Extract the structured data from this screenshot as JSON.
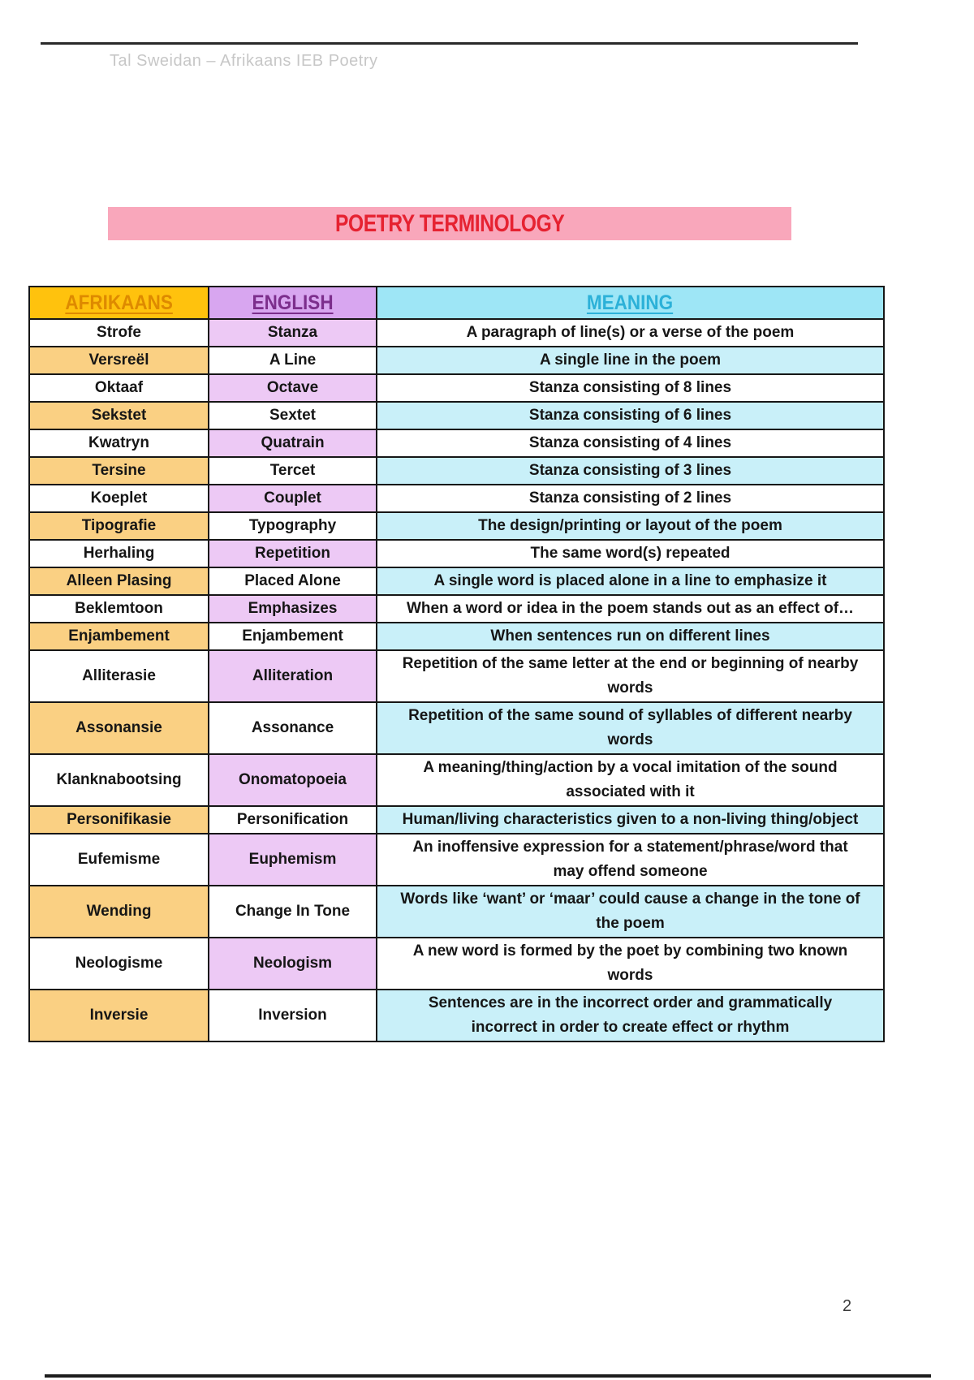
{
  "page": {
    "author_line": "Tal Sweidan – Afrikaans IEB Poetry",
    "title": "POETRY TERMINOLOGY",
    "page_number": "2"
  },
  "colors": {
    "banner_bg": "#F9A7BB",
    "banner_text": "#E62231",
    "header_afrikaans_bg": "#FFC20D",
    "header_afrikaans_text": "#DE8A00",
    "header_english_bg": "#D8A6F0",
    "header_english_text": "#7C2E8C",
    "header_meaning_bg": "#9EE6F6",
    "header_meaning_text": "#2CB1D8",
    "cell_orange": "#FAD083",
    "cell_purple": "#EDC9F5",
    "cell_cyan": "#C9F0F9"
  },
  "table": {
    "headers": [
      {
        "label": "AFRIKAANS"
      },
      {
        "label": "ENGLISH"
      },
      {
        "label": "MEANING"
      }
    ],
    "rows": [
      {
        "afrikaans": "Strofe",
        "english": "Stanza",
        "meaning": "A paragraph of line(s) or a verse of the poem"
      },
      {
        "afrikaans": "Versreël",
        "english": "A Line",
        "meaning": "A single line in the poem"
      },
      {
        "afrikaans": "Oktaaf",
        "english": "Octave",
        "meaning": "Stanza consisting of 8 lines"
      },
      {
        "afrikaans": "Sekstet",
        "english": "Sextet",
        "meaning": "Stanza consisting of 6 lines"
      },
      {
        "afrikaans": "Kwatryn",
        "english": "Quatrain",
        "meaning": "Stanza consisting of 4 lines"
      },
      {
        "afrikaans": "Tersine",
        "english": "Tercet",
        "meaning": "Stanza consisting of 3 lines"
      },
      {
        "afrikaans": "Koeplet",
        "english": "Couplet",
        "meaning": "Stanza consisting of 2 lines"
      },
      {
        "afrikaans": "Tipografie",
        "english": "Typography",
        "meaning": "The design/printing or layout of the poem"
      },
      {
        "afrikaans": "Herhaling",
        "english": "Repetition",
        "meaning": "The same word(s) repeated"
      },
      {
        "afrikaans": "Alleen Plasing",
        "english": "Placed Alone",
        "meaning": "A single word is placed alone in a line to emphasize it"
      },
      {
        "afrikaans": "Beklemtoon",
        "english": "Emphasizes",
        "meaning": "When a word or idea in the poem stands out as an effect of…"
      },
      {
        "afrikaans": "Enjambement",
        "english": "Enjambement",
        "meaning": "When sentences run on different lines"
      },
      {
        "afrikaans": "Alliterasie",
        "english": "Alliteration",
        "meaning": "Repetition of the same letter at the end or beginning of nearby words"
      },
      {
        "afrikaans": "Assonansie",
        "english": "Assonance",
        "meaning": "Repetition of the same sound of syllables of different nearby words"
      },
      {
        "afrikaans": "Klanknabootsing",
        "english": "Onomatopoeia",
        "meaning": "A meaning/thing/action by a vocal imitation of the sound associated with it"
      },
      {
        "afrikaans": "Personifikasie",
        "english": "Personification",
        "meaning": "Human/living characteristics given to a non-living thing/object"
      },
      {
        "afrikaans": "Eufemisme",
        "english": "Euphemism",
        "meaning": "An inoffensive expression for a statement/phrase/word that may offend someone"
      },
      {
        "afrikaans": "Wending",
        "english": "Change In Tone",
        "meaning": "Words like ‘want’ or ‘maar’ could cause a change in the tone of the poem"
      },
      {
        "afrikaans": "Neologisme",
        "english": "Neologism",
        "meaning": "A new word is formed by the poet by combining two known words"
      },
      {
        "afrikaans": "Inversie",
        "english": "Inversion",
        "meaning": "Sentences are in the incorrect order and grammatically incorrect in order to create effect or rhythm"
      }
    ]
  }
}
